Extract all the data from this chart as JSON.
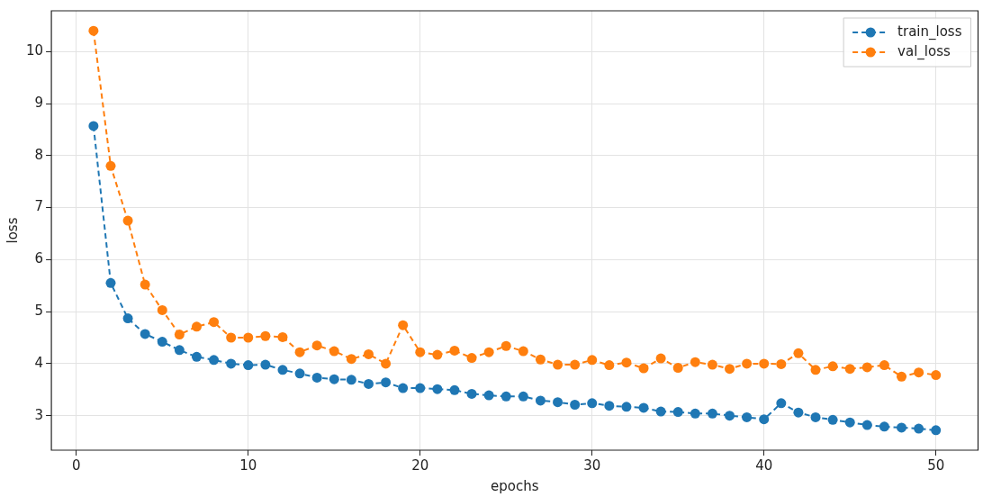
{
  "chart_data": {
    "type": "line",
    "xlabel": "epochs",
    "ylabel": "loss",
    "x": [
      1,
      2,
      3,
      4,
      5,
      6,
      7,
      8,
      9,
      10,
      11,
      12,
      13,
      14,
      15,
      16,
      17,
      18,
      19,
      20,
      21,
      22,
      23,
      24,
      25,
      26,
      27,
      28,
      29,
      30,
      31,
      32,
      33,
      34,
      35,
      36,
      37,
      38,
      39,
      40,
      41,
      42,
      43,
      44,
      45,
      46,
      47,
      48,
      49,
      50
    ],
    "series": [
      {
        "name": "train_loss",
        "color": "#1f77b4",
        "values": [
          8.57,
          5.55,
          4.87,
          4.57,
          4.42,
          4.26,
          4.13,
          4.07,
          4.0,
          3.97,
          3.98,
          3.88,
          3.81,
          3.73,
          3.7,
          3.69,
          3.61,
          3.64,
          3.53,
          3.53,
          3.51,
          3.49,
          3.42,
          3.39,
          3.37,
          3.37,
          3.29,
          3.26,
          3.21,
          3.24,
          3.19,
          3.17,
          3.15,
          3.08,
          3.07,
          3.04,
          3.04,
          3.0,
          2.97,
          2.93,
          3.24,
          3.06,
          2.97,
          2.92,
          2.87,
          2.82,
          2.79,
          2.77,
          2.75,
          2.72
        ]
      },
      {
        "name": "val_loss",
        "color": "#ff7f0e",
        "values": [
          10.4,
          7.8,
          6.75,
          5.52,
          5.03,
          4.56,
          4.71,
          4.8,
          4.5,
          4.5,
          4.53,
          4.51,
          4.22,
          4.35,
          4.24,
          4.09,
          4.18,
          4.0,
          4.74,
          4.22,
          4.17,
          4.25,
          4.11,
          4.22,
          4.34,
          4.24,
          4.08,
          3.98,
          3.98,
          4.07,
          3.97,
          4.02,
          3.91,
          4.1,
          3.92,
          4.03,
          3.98,
          3.9,
          4.0,
          4.0,
          3.99,
          4.2,
          3.88,
          3.95,
          3.9,
          3.93,
          3.97,
          3.75,
          3.83,
          3.78
        ]
      }
    ],
    "xlim": [
      -1.45,
      52.45
    ],
    "xticks": [
      0,
      10,
      20,
      30,
      40,
      50
    ],
    "ylim": [
      2.336,
      10.784
    ],
    "yticks": [
      3,
      4,
      5,
      6,
      7,
      8,
      9,
      10
    ],
    "grid": true,
    "legend": "top right",
    "marker": "circle",
    "line_style": "dashed"
  }
}
